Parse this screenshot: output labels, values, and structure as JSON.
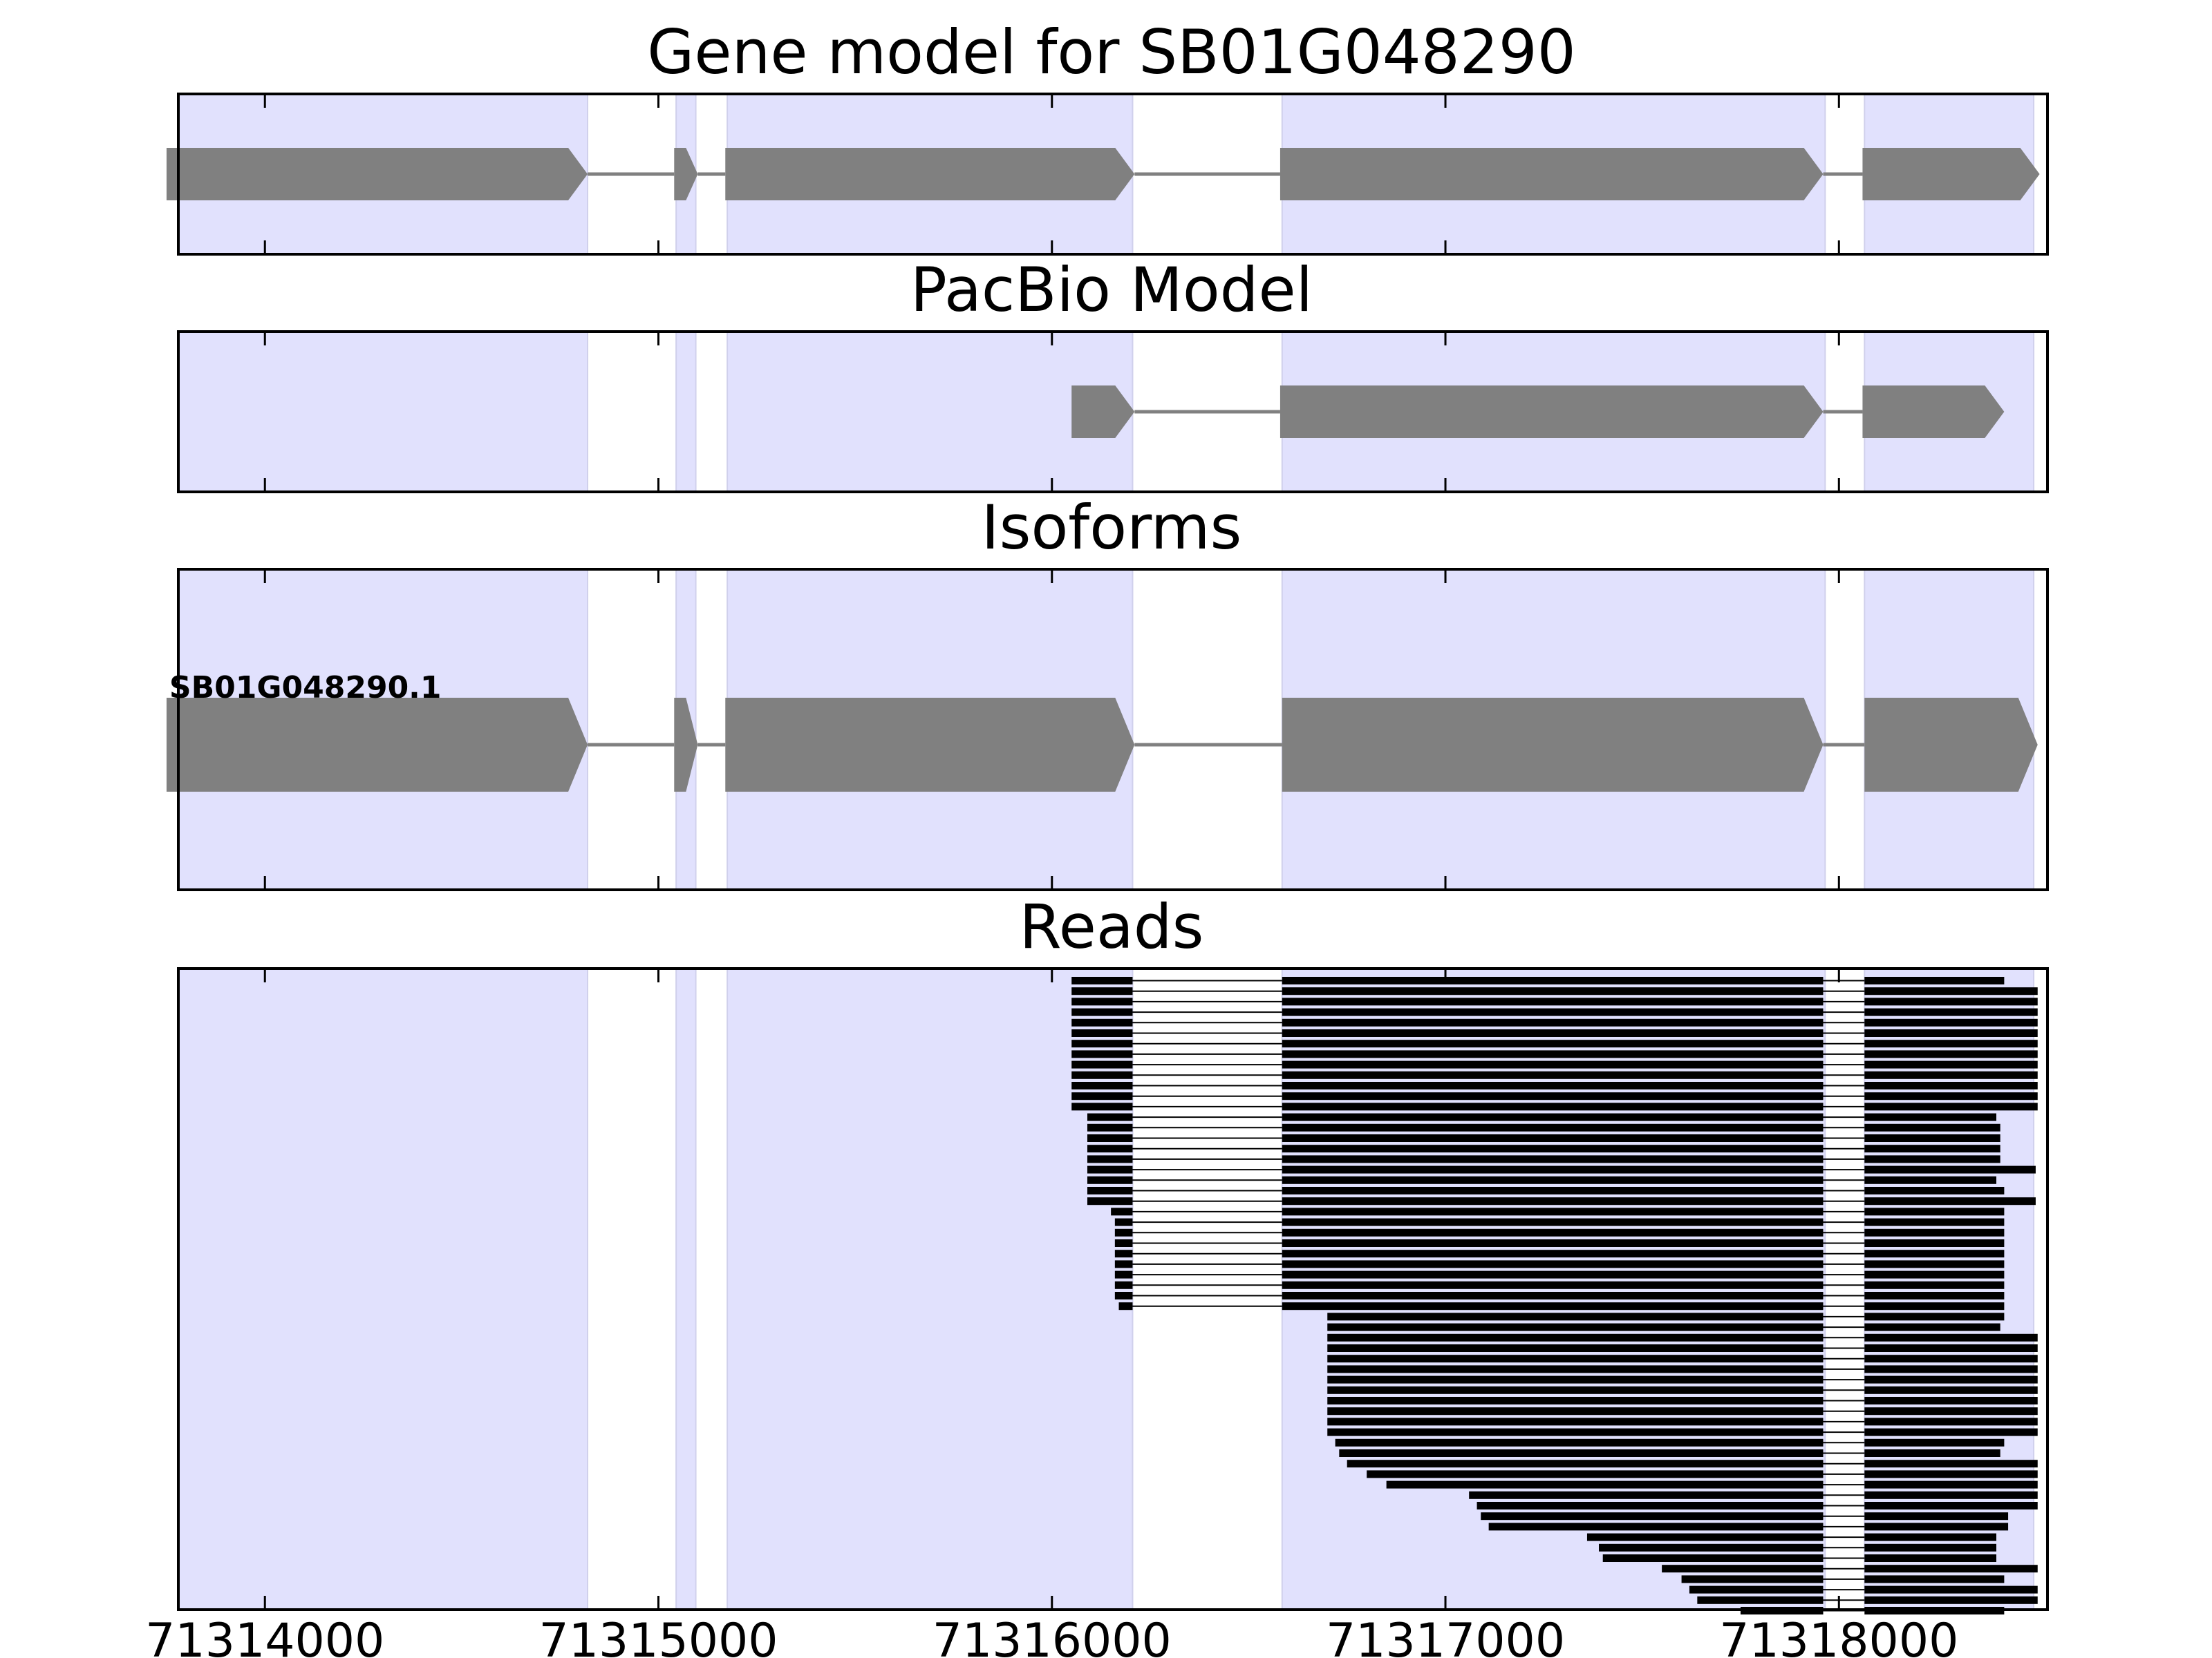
{
  "chart_data": {
    "type": "gene-track",
    "figure_title": "Gene model for SB01G048290",
    "x_range": [
      71313780,
      71318530
    ],
    "x_ticks": [
      {
        "value": 71314000,
        "label": "71314000"
      },
      {
        "value": 71315000,
        "label": "71315000"
      },
      {
        "value": 71316000,
        "label": "71316000"
      },
      {
        "value": 71317000,
        "label": "71317000"
      },
      {
        "value": 71318000,
        "label": "71318000"
      }
    ],
    "exon_regions": [
      [
        71313780,
        71314820
      ],
      [
        71315045,
        71315095
      ],
      [
        71315175,
        71316205
      ],
      [
        71316585,
        71317965
      ],
      [
        71318065,
        71318495
      ]
    ],
    "colors": {
      "exon_shade": "#e1e1fd",
      "feature": "#808080",
      "intron_line": "#808080",
      "read": "#000000"
    },
    "panels": [
      {
        "id": "gene-model",
        "title": "PacBio Model",
        "title_shown_above": "Gene model for SB01G048290",
        "models": [
          {
            "label": "",
            "exons": [
              [
                71313750,
                71314820
              ],
              [
                71315040,
                71315100
              ],
              [
                71315170,
                71316210
              ],
              [
                71316580,
                71317960
              ],
              [
                71318060,
                71318510
              ]
            ]
          }
        ]
      },
      {
        "id": "pacbio-model",
        "title": "PacBio Model",
        "models": [
          {
            "label": "",
            "exons": [
              [
                71316050,
                71316210
              ],
              [
                71316580,
                71317960
              ],
              [
                71318060,
                71318420
              ]
            ]
          }
        ]
      },
      {
        "id": "isoforms",
        "title": "Isoforms",
        "models": [
          {
            "label": "SB01G048290.1",
            "exons": [
              [
                71313750,
                71314820
              ],
              [
                71315040,
                71315100
              ],
              [
                71315170,
                71316210
              ],
              [
                71316585,
                71317960
              ],
              [
                71318065,
                71318505
              ]
            ]
          }
        ]
      }
    ],
    "reads": {
      "title": "Reads",
      "intron_starts": [
        71316205,
        71317960
      ],
      "intron_ends": [
        71316585,
        71318065
      ],
      "items": [
        [
          71316050,
          71318420
        ],
        [
          71316050,
          71318505
        ],
        [
          71316050,
          71318505
        ],
        [
          71316050,
          71318505
        ],
        [
          71316050,
          71318505
        ],
        [
          71316050,
          71318505
        ],
        [
          71316050,
          71318505
        ],
        [
          71316050,
          71318505
        ],
        [
          71316050,
          71318505
        ],
        [
          71316050,
          71318505
        ],
        [
          71316050,
          71318505
        ],
        [
          71316050,
          71318505
        ],
        [
          71316050,
          71318505
        ],
        [
          71316090,
          71318400
        ],
        [
          71316090,
          71318410
        ],
        [
          71316090,
          71318410
        ],
        [
          71316090,
          71318410
        ],
        [
          71316090,
          71318410
        ],
        [
          71316090,
          71318500
        ],
        [
          71316090,
          71318400
        ],
        [
          71316090,
          71318420
        ],
        [
          71316090,
          71318500
        ],
        [
          71316150,
          71318420
        ],
        [
          71316160,
          71318420
        ],
        [
          71316160,
          71318420
        ],
        [
          71316160,
          71318420
        ],
        [
          71316160,
          71318420
        ],
        [
          71316160,
          71318420
        ],
        [
          71316160,
          71318420
        ],
        [
          71316160,
          71318420
        ],
        [
          71316160,
          71318420
        ],
        [
          71316170,
          71318420
        ],
        [
          71316700,
          71318420
        ],
        [
          71316700,
          71318410
        ],
        [
          71316700,
          71318505
        ],
        [
          71316700,
          71318505
        ],
        [
          71316700,
          71318505
        ],
        [
          71316700,
          71318505
        ],
        [
          71316700,
          71318505
        ],
        [
          71316700,
          71318505
        ],
        [
          71316700,
          71318505
        ],
        [
          71316700,
          71318505
        ],
        [
          71316700,
          71318505
        ],
        [
          71316700,
          71318505
        ],
        [
          71316720,
          71318420
        ],
        [
          71316730,
          71318410
        ],
        [
          71316750,
          71318505
        ],
        [
          71316800,
          71318505
        ],
        [
          71316850,
          71318505
        ],
        [
          71317060,
          71318505
        ],
        [
          71317080,
          71318505
        ],
        [
          71317090,
          71318430
        ],
        [
          71317110,
          71318430
        ],
        [
          71317360,
          71318400
        ],
        [
          71317390,
          71318400
        ],
        [
          71317400,
          71318400
        ],
        [
          71317550,
          71318505
        ],
        [
          71317600,
          71318420
        ],
        [
          71317620,
          71318505
        ],
        [
          71317640,
          71318505
        ],
        [
          71317750,
          71318420
        ]
      ]
    }
  }
}
